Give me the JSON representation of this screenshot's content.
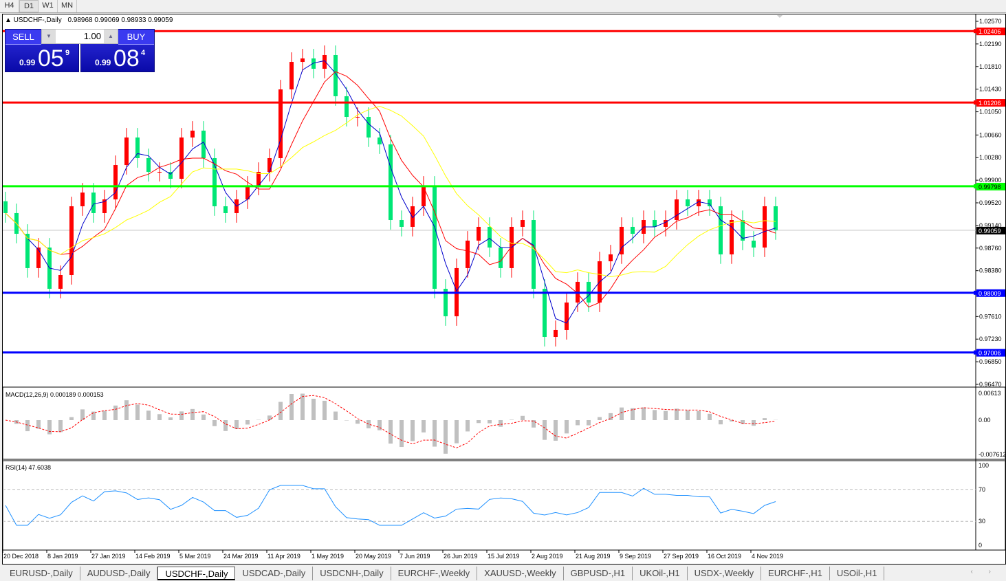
{
  "timeframes": [
    "H4",
    "D1",
    "W1",
    "MN"
  ],
  "selected_timeframe": "D1",
  "chart": {
    "symbol_title": "USDCHF-,Daily",
    "ohlc": "0.98968 0.99069 0.98933 0.99059"
  },
  "trade_panel": {
    "sell_label": "SELL",
    "buy_label": "BUY",
    "lot": "1.00",
    "sell_price": {
      "prefix": "0.99",
      "big": "05",
      "sup": "9"
    },
    "buy_price": {
      "prefix": "0.99",
      "big": "08",
      "sup": "4"
    }
  },
  "colors": {
    "bull_candle": "#ff0000",
    "bear_candle": "#00e676",
    "ma_fast": "#0000cc",
    "ma_mid": "#ff0000",
    "ma_slow": "#ffff00",
    "resistance": "#ff0000",
    "pivot": "#00ff00",
    "support": "#0000ff",
    "rsi": "#1e90ff",
    "macd_signal": "#ff0000",
    "macd_hist": "#c0c0c0"
  },
  "chart_data": {
    "type": "candlestick",
    "price_ticks": [
      "1.02570",
      "1.02190",
      "1.01810",
      "1.01430",
      "1.01050",
      "1.00660",
      "1.00280",
      "0.99900",
      "0.99520",
      "0.99140",
      "0.98760",
      "0.98380",
      "0.97610",
      "0.97230",
      "0.96850",
      "0.96470"
    ],
    "ylim": [
      0.9647,
      1.0257
    ],
    "levels": [
      {
        "price": "1.02406",
        "type": "resistance"
      },
      {
        "price": "1.01206",
        "type": "resistance"
      },
      {
        "price": "0.99798",
        "type": "pivot"
      },
      {
        "price": "0.98009",
        "type": "support"
      },
      {
        "price": "0.97006",
        "type": "support"
      }
    ],
    "current_price": "0.99059",
    "date_labels": [
      "20 Dec 2018",
      "8 Jan 2019",
      "27 Jan 2019",
      "14 Feb 2019",
      "5 Mar 2019",
      "24 Mar 2019",
      "11 Apr 2019",
      "1 May 2019",
      "20 May 2019",
      "7 Jun 2019",
      "26 Jun 2019",
      "15 Jul 2019",
      "2 Aug 2019",
      "21 Aug 2019",
      "9 Sep 2019",
      "27 Sep 2019",
      "16 Oct 2019",
      "4 Nov 2019"
    ],
    "closes": [
      0.99347,
      0.99,
      0.98423,
      0.98769,
      0.98076,
      0.98307,
      0.99462,
      0.99693,
      0.99347,
      0.99578,
      1.00155,
      1.00618,
      1.00271,
      1.0004,
      1.0004,
      0.99924,
      1.00618,
      1.00733,
      1.00271,
      0.99462,
      0.99347,
      0.99578,
      0.99809,
      1.0004,
      1.00271,
      1.01426,
      1.01888,
      1.01946,
      1.01773,
      1.02004,
      1.01311,
      1.00964,
      1.00964,
      1.00618,
      1.00502,
      0.99231,
      0.99116,
      0.99462,
      0.99809,
      0.98076,
      0.97614,
      0.98423,
      0.98885,
      0.99116,
      0.98769,
      0.98423,
      0.99116,
      0.99231,
      0.98076,
      0.97267,
      0.97383,
      0.97845,
      0.98192,
      0.97845,
      0.98538,
      0.98654,
      0.99116,
      0.99,
      0.99231,
      0.99116,
      0.99231,
      0.99578,
      0.99462,
      0.99578,
      0.99462,
      0.98654,
      0.99231,
      0.98885,
      0.98769,
      0.99462,
      0.99059
    ],
    "macd": {
      "label": "MACD(12,26,9) 0.000189 0.000153",
      "ticks": [
        "0.00613",
        "0.00",
        "-0.007612"
      ],
      "ylim": [
        -0.007612,
        0.00613
      ]
    },
    "rsi": {
      "label": "RSI(14) 47.6038",
      "ticks": [
        "100",
        "70",
        "30",
        "0"
      ],
      "levels": [
        70,
        30
      ]
    }
  },
  "tabs": [
    "EURUSD-,Daily",
    "AUDUSD-,Daily",
    "USDCHF-,Daily",
    "USDCAD-,Daily",
    "USDCNH-,Daily",
    "EURCHF-,Weekly",
    "XAUUSD-,Weekly",
    "GBPUSD-,H1",
    "UKOil-,H1",
    "USDX-,Weekly",
    "EURCHF-,H1",
    "USOil-,H1"
  ],
  "active_tab": "USDCHF-,Daily"
}
